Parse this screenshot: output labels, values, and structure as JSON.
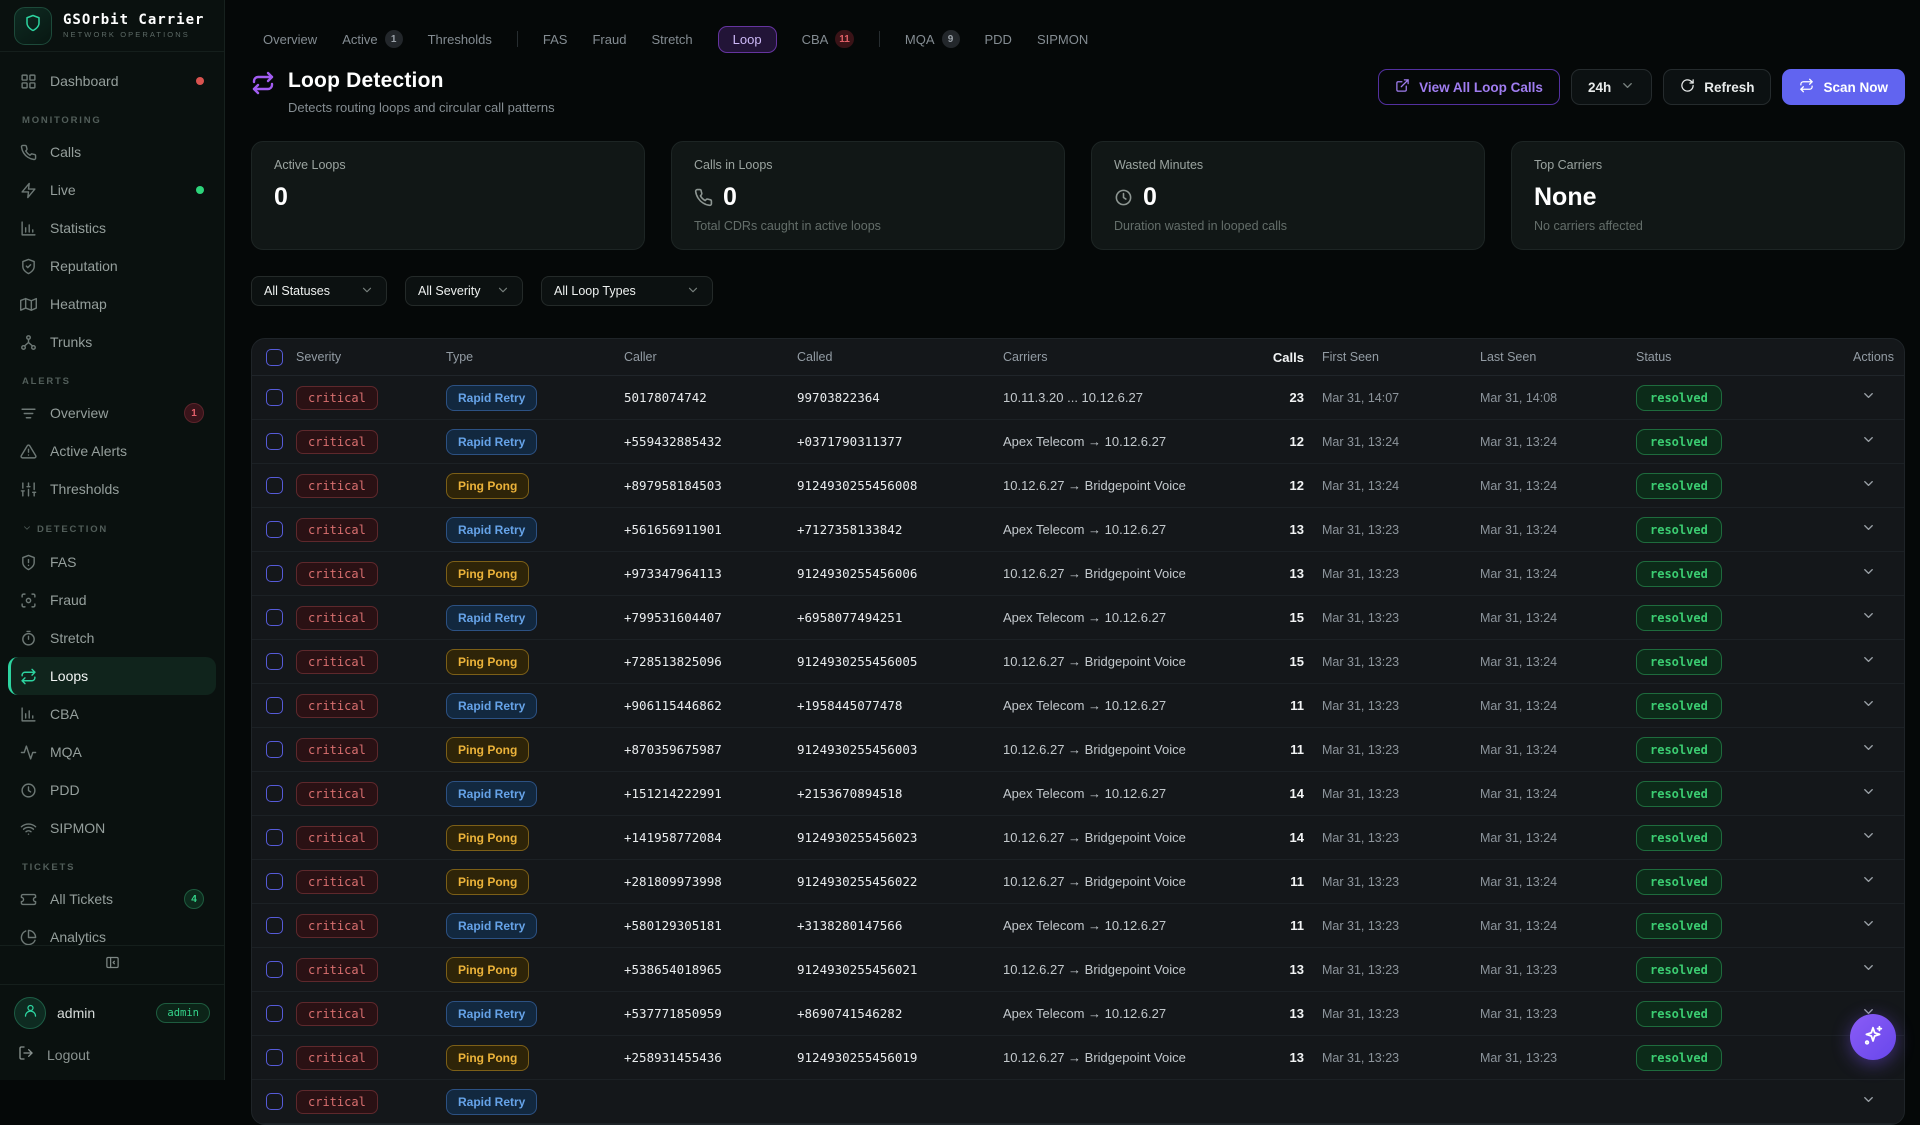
{
  "brand": {
    "name": "GSOrbit Carrier",
    "subtitle": "NETWORK OPERATIONS",
    "logo_icon": "shield-icon"
  },
  "colors": {
    "accent_purple": "#6164f0",
    "brand_teal": "#2dd4a0",
    "critical_red": "#d96f6f",
    "type_blue": "#66a3e8",
    "type_yellow": "#ecb33a",
    "resolved_green": "#3bcd72",
    "alert_red_dot": "#d9534f",
    "live_green_dot": "#2dd47a"
  },
  "sidebar": {
    "sections": [
      {
        "label": "",
        "items": [
          {
            "label": "Dashboard",
            "icon": "grid",
            "dot": "#d9534f"
          }
        ]
      },
      {
        "label": "MONITORING",
        "items": [
          {
            "label": "Calls",
            "icon": "phone"
          },
          {
            "label": "Live",
            "icon": "bolt",
            "dot": "#2dd47a"
          },
          {
            "label": "Statistics",
            "icon": "chart"
          },
          {
            "label": "Reputation",
            "icon": "shield-check"
          },
          {
            "label": "Heatmap",
            "icon": "map"
          },
          {
            "label": "Trunks",
            "icon": "network"
          }
        ]
      },
      {
        "label": "ALERTS",
        "items": [
          {
            "label": "Overview",
            "icon": "filter",
            "badge": "1",
            "badge_style": "red"
          },
          {
            "label": "Active Alerts",
            "icon": "triangle"
          },
          {
            "label": "Thresholds",
            "icon": "sliders"
          }
        ]
      },
      {
        "label": "DETECTION",
        "collapsible": true,
        "items": [
          {
            "label": "FAS",
            "icon": "shield-alert"
          },
          {
            "label": "Fraud",
            "icon": "scan"
          },
          {
            "label": "Stretch",
            "icon": "stopwatch"
          },
          {
            "label": "Loops",
            "icon": "loop",
            "active": true
          },
          {
            "label": "CBA",
            "icon": "chart"
          },
          {
            "label": "MQA",
            "icon": "activity"
          },
          {
            "label": "PDD",
            "icon": "clock"
          },
          {
            "label": "SIPMON",
            "icon": "wifi"
          }
        ]
      },
      {
        "label": "TICKETS",
        "items": [
          {
            "label": "All Tickets",
            "icon": "ticket",
            "badge": "4",
            "badge_style": "green"
          },
          {
            "label": "Analytics",
            "icon": "pie"
          }
        ]
      }
    ],
    "footer": {
      "username": "admin",
      "role_badge": "admin",
      "logout_label": "Logout"
    }
  },
  "topnav": {
    "tabs": [
      {
        "label": "Overview"
      },
      {
        "label": "Active",
        "badge": "1",
        "badge_style": "gray"
      },
      {
        "label": "Thresholds",
        "divider_after": true
      },
      {
        "label": "FAS"
      },
      {
        "label": "Fraud"
      },
      {
        "label": "Stretch"
      },
      {
        "label": "Loop",
        "active": true
      },
      {
        "label": "CBA",
        "badge": "11",
        "badge_style": "red",
        "divider_after": true
      },
      {
        "label": "MQA",
        "badge": "9",
        "badge_style": "gray"
      },
      {
        "label": "PDD"
      },
      {
        "label": "SIPMON"
      }
    ]
  },
  "page_header": {
    "title": "Loop Detection",
    "subtitle": "Detects routing loops and circular call patterns",
    "icon": "loop"
  },
  "toolbar": {
    "view_all_label": "View All Loop Calls",
    "range_value": "24h",
    "refresh_label": "Refresh",
    "scan_label": "Scan Now"
  },
  "stats": [
    {
      "label": "Active Loops",
      "value": "0",
      "icon": "",
      "note": ""
    },
    {
      "label": "Calls in Loops",
      "value": "0",
      "icon": "phone",
      "note": "Total CDRs caught in active loops"
    },
    {
      "label": "Wasted Minutes",
      "value": "0",
      "icon": "clock",
      "note": "Duration wasted in looped calls"
    },
    {
      "label": "Top Carriers",
      "value": "None",
      "icon": "",
      "note": "No carriers affected"
    }
  ],
  "filters": [
    {
      "value": "All Statuses"
    },
    {
      "value": "All Severity"
    },
    {
      "value": "All Loop Types"
    }
  ],
  "table": {
    "columns": [
      "Severity",
      "Type",
      "Caller",
      "Called",
      "Carriers",
      "Calls",
      "First Seen",
      "Last Seen",
      "Status",
      "Actions"
    ],
    "rows": [
      {
        "severity": "critical",
        "type": "Rapid Retry",
        "caller": "50178074742",
        "called": "99703822364",
        "carriers": "10.11.3.20 ... 10.12.6.27",
        "calls": "23",
        "first_seen": "Mar 31, 14:07",
        "last_seen": "Mar 31, 14:08",
        "status": "resolved"
      },
      {
        "severity": "critical",
        "type": "Rapid Retry",
        "caller": "+559432885432",
        "called": "+0371790311377",
        "carriers": "Apex Telecom → 10.12.6.27",
        "calls": "12",
        "first_seen": "Mar 31, 13:24",
        "last_seen": "Mar 31, 13:24",
        "status": "resolved"
      },
      {
        "severity": "critical",
        "type": "Ping Pong",
        "caller": "+897958184503",
        "called": "9124930255456008",
        "carriers": "10.12.6.27 → Bridgepoint Voice",
        "calls": "12",
        "first_seen": "Mar 31, 13:24",
        "last_seen": "Mar 31, 13:24",
        "status": "resolved"
      },
      {
        "severity": "critical",
        "type": "Rapid Retry",
        "caller": "+561656911901",
        "called": "+7127358133842",
        "carriers": "Apex Telecom → 10.12.6.27",
        "calls": "13",
        "first_seen": "Mar 31, 13:23",
        "last_seen": "Mar 31, 13:24",
        "status": "resolved"
      },
      {
        "severity": "critical",
        "type": "Ping Pong",
        "caller": "+973347964113",
        "called": "9124930255456006",
        "carriers": "10.12.6.27 → Bridgepoint Voice",
        "calls": "13",
        "first_seen": "Mar 31, 13:23",
        "last_seen": "Mar 31, 13:24",
        "status": "resolved"
      },
      {
        "severity": "critical",
        "type": "Rapid Retry",
        "caller": "+799531604407",
        "called": "+6958077494251",
        "carriers": "Apex Telecom → 10.12.6.27",
        "calls": "15",
        "first_seen": "Mar 31, 13:23",
        "last_seen": "Mar 31, 13:24",
        "status": "resolved"
      },
      {
        "severity": "critical",
        "type": "Ping Pong",
        "caller": "+728513825096",
        "called": "9124930255456005",
        "carriers": "10.12.6.27 → Bridgepoint Voice",
        "calls": "15",
        "first_seen": "Mar 31, 13:23",
        "last_seen": "Mar 31, 13:24",
        "status": "resolved"
      },
      {
        "severity": "critical",
        "type": "Rapid Retry",
        "caller": "+906115446862",
        "called": "+1958445077478",
        "carriers": "Apex Telecom → 10.12.6.27",
        "calls": "11",
        "first_seen": "Mar 31, 13:23",
        "last_seen": "Mar 31, 13:24",
        "status": "resolved"
      },
      {
        "severity": "critical",
        "type": "Ping Pong",
        "caller": "+870359675987",
        "called": "9124930255456003",
        "carriers": "10.12.6.27 → Bridgepoint Voice",
        "calls": "11",
        "first_seen": "Mar 31, 13:23",
        "last_seen": "Mar 31, 13:24",
        "status": "resolved"
      },
      {
        "severity": "critical",
        "type": "Rapid Retry",
        "caller": "+151214222991",
        "called": "+2153670894518",
        "carriers": "Apex Telecom → 10.12.6.27",
        "calls": "14",
        "first_seen": "Mar 31, 13:23",
        "last_seen": "Mar 31, 13:24",
        "status": "resolved"
      },
      {
        "severity": "critical",
        "type": "Ping Pong",
        "caller": "+141958772084",
        "called": "9124930255456023",
        "carriers": "10.12.6.27 → Bridgepoint Voice",
        "calls": "14",
        "first_seen": "Mar 31, 13:23",
        "last_seen": "Mar 31, 13:24",
        "status": "resolved"
      },
      {
        "severity": "critical",
        "type": "Ping Pong",
        "caller": "+281809973998",
        "called": "9124930255456022",
        "carriers": "10.12.6.27 → Bridgepoint Voice",
        "calls": "11",
        "first_seen": "Mar 31, 13:23",
        "last_seen": "Mar 31, 13:24",
        "status": "resolved"
      },
      {
        "severity": "critical",
        "type": "Rapid Retry",
        "caller": "+580129305181",
        "called": "+3138280147566",
        "carriers": "Apex Telecom → 10.12.6.27",
        "calls": "11",
        "first_seen": "Mar 31, 13:23",
        "last_seen": "Mar 31, 13:24",
        "status": "resolved"
      },
      {
        "severity": "critical",
        "type": "Ping Pong",
        "caller": "+538654018965",
        "called": "9124930255456021",
        "carriers": "10.12.6.27 → Bridgepoint Voice",
        "calls": "13",
        "first_seen": "Mar 31, 13:23",
        "last_seen": "Mar 31, 13:23",
        "status": "resolved"
      },
      {
        "severity": "critical",
        "type": "Rapid Retry",
        "caller": "+537771850959",
        "called": "+8690741546282",
        "carriers": "Apex Telecom → 10.12.6.27",
        "calls": "13",
        "first_seen": "Mar 31, 13:23",
        "last_seen": "Mar 31, 13:23",
        "status": "resolved"
      },
      {
        "severity": "critical",
        "type": "Ping Pong",
        "caller": "+258931455436",
        "called": "9124930255456019",
        "carriers": "10.12.6.27 → Bridgepoint Voice",
        "calls": "13",
        "first_seen": "Mar 31, 13:23",
        "last_seen": "Mar 31, 13:23",
        "status": "resolved"
      },
      {
        "severity": "critical",
        "type": "Rapid Retry",
        "caller": "",
        "called": "",
        "carriers": "",
        "calls": "",
        "first_seen": "",
        "last_seen": "",
        "status": ""
      }
    ]
  },
  "fab": {
    "icon": "sparkles"
  }
}
